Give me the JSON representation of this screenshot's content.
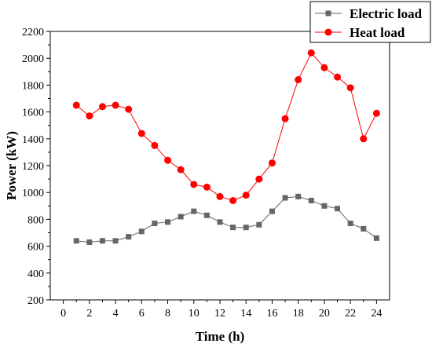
{
  "chart_data": {
    "type": "line",
    "xlabel": "Time (h)",
    "ylabel": "Power (kW)",
    "xlim": [
      -1,
      25
    ],
    "ylim": [
      200,
      2200
    ],
    "xticks": [
      0,
      2,
      4,
      6,
      8,
      10,
      12,
      14,
      16,
      18,
      20,
      22,
      24
    ],
    "yticks": [
      200,
      400,
      600,
      800,
      1000,
      1200,
      1400,
      1600,
      1800,
      2000,
      2200
    ],
    "grid": false,
    "legend_position": "top-right",
    "x": [
      1,
      2,
      3,
      4,
      5,
      6,
      7,
      8,
      9,
      10,
      11,
      12,
      13,
      14,
      15,
      16,
      17,
      18,
      19,
      20,
      21,
      22,
      23,
      24
    ],
    "series": [
      {
        "name": "Electric load",
        "marker": "square",
        "color": "#666666",
        "values": [
          640,
          630,
          640,
          640,
          670,
          710,
          770,
          780,
          820,
          860,
          830,
          780,
          740,
          740,
          760,
          860,
          960,
          970,
          940,
          900,
          880,
          770,
          730,
          660
        ]
      },
      {
        "name": "Heat  load",
        "marker": "circle",
        "color": "#ff0000",
        "values": [
          1650,
          1570,
          1640,
          1650,
          1620,
          1440,
          1350,
          1240,
          1170,
          1060,
          1040,
          970,
          940,
          980,
          1100,
          1220,
          1550,
          1840,
          2040,
          1930,
          1860,
          1780,
          1400,
          1590
        ]
      }
    ]
  }
}
